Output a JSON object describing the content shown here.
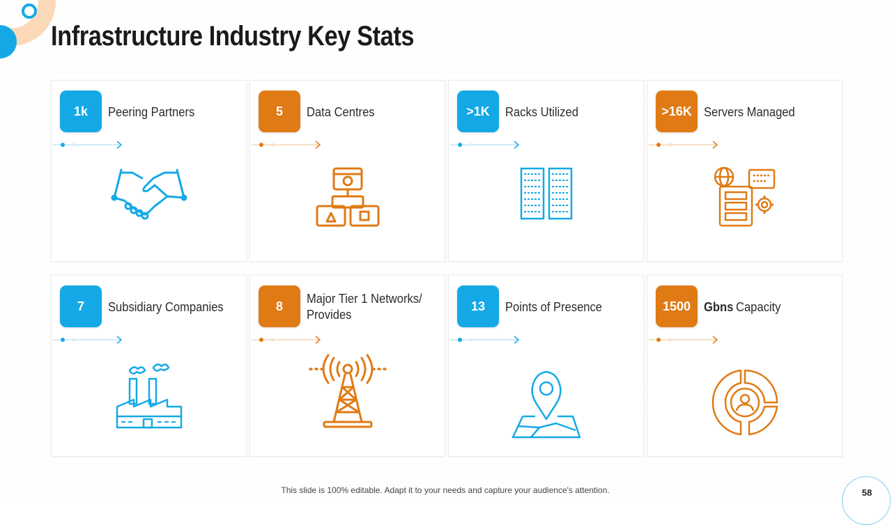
{
  "slide": {
    "title": "Infrastructure Industry Key Stats",
    "footer": "This slide is 100% editable. Adapt it to your needs and capture your audience's attention.",
    "page_number": "58"
  },
  "colors": {
    "blue": "#14a9e6",
    "orange": "#e07a14",
    "peach": "#fbd9b8"
  },
  "stats": [
    {
      "value": "1k",
      "label": "Peering Partners",
      "color": "blue",
      "icon": "handshake-icon"
    },
    {
      "value": "5",
      "label": "Data Centres",
      "color": "orange",
      "icon": "network-hierarchy-icon"
    },
    {
      "value": ">1K",
      "label": "Racks Utilized",
      "color": "blue",
      "icon": "server-racks-icon"
    },
    {
      "value": ">16K",
      "label": "Servers Managed",
      "color": "orange",
      "icon": "server-gear-globe-icon"
    },
    {
      "value": "7",
      "label": "Subsidiary Companies",
      "color": "blue",
      "icon": "factory-icon"
    },
    {
      "value": "8",
      "label": "Major Tier 1 Networks/ Provides",
      "color": "orange",
      "icon": "radio-tower-icon"
    },
    {
      "value": "13",
      "label": "Points of Presence",
      "color": "blue",
      "icon": "map-pin-icon"
    },
    {
      "value": "1500",
      "label_bold": "Gbns",
      "label": "Capacity",
      "color": "orange",
      "icon": "user-target-icon"
    }
  ]
}
